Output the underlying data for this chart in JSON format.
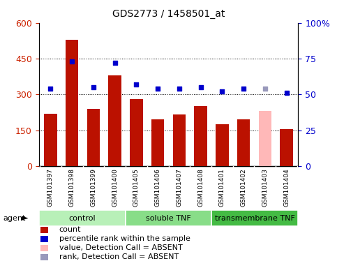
{
  "title": "GDS2773 / 1458501_at",
  "samples": [
    "GSM101397",
    "GSM101398",
    "GSM101399",
    "GSM101400",
    "GSM101405",
    "GSM101406",
    "GSM101407",
    "GSM101408",
    "GSM101401",
    "GSM101402",
    "GSM101403",
    "GSM101404"
  ],
  "bar_values": [
    220,
    530,
    240,
    380,
    280,
    195,
    215,
    250,
    175,
    195,
    230,
    155
  ],
  "bar_colors": [
    "#bb1100",
    "#bb1100",
    "#bb1100",
    "#bb1100",
    "#bb1100",
    "#bb1100",
    "#bb1100",
    "#bb1100",
    "#bb1100",
    "#bb1100",
    "#ffb8b8",
    "#bb1100"
  ],
  "rank_values": [
    54,
    73,
    55,
    72,
    57,
    54,
    54,
    55,
    52,
    54,
    54,
    51
  ],
  "rank_colors": [
    "#0000cc",
    "#0000cc",
    "#0000cc",
    "#0000cc",
    "#0000cc",
    "#0000cc",
    "#0000cc",
    "#0000cc",
    "#0000cc",
    "#0000cc",
    "#9999bb",
    "#0000cc"
  ],
  "groups": [
    {
      "label": "control",
      "start": 0,
      "end": 4,
      "color": "#b8f0b8"
    },
    {
      "label": "soluble TNF",
      "start": 4,
      "end": 8,
      "color": "#88dd88"
    },
    {
      "label": "transmembrane TNF",
      "start": 8,
      "end": 12,
      "color": "#44bb44"
    }
  ],
  "ylim_left": [
    0,
    600
  ],
  "ylim_right": [
    0,
    100
  ],
  "yticks_left": [
    0,
    150,
    300,
    450,
    600
  ],
  "ytick_labels_left": [
    "0",
    "150",
    "300",
    "450",
    "600"
  ],
  "yticks_right": [
    0,
    25,
    50,
    75,
    100
  ],
  "ytick_labels_right": [
    "0",
    "25",
    "50",
    "75",
    "100%"
  ],
  "ylabel_left_color": "#cc2200",
  "ylabel_right_color": "#0000cc",
  "background_color": "#ffffff",
  "xtick_bg_color": "#cccccc",
  "grid_dotted_at": [
    150,
    300,
    450
  ],
  "bar_width": 0.6,
  "legend": [
    {
      "color": "#bb1100",
      "label": "count"
    },
    {
      "color": "#0000cc",
      "label": "percentile rank within the sample"
    },
    {
      "color": "#ffb8b8",
      "label": "value, Detection Call = ABSENT"
    },
    {
      "color": "#9999bb",
      "label": "rank, Detection Call = ABSENT"
    }
  ]
}
